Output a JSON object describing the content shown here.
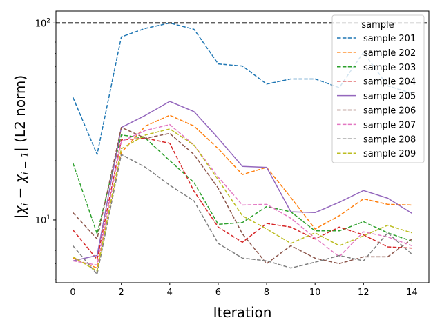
{
  "chart_data": {
    "type": "line",
    "title": "",
    "xlabel": "Iteration",
    "ylabel": "|χᵢ − χᵢ₋₁| (L2 norm)",
    "ylabel_parts": {
      "pre": "|",
      "chi1": "χ",
      "sub1": "i",
      "minus": " − ",
      "chi2": "χ",
      "sub2": "i − 1",
      "post": "| (L2 norm)"
    },
    "yscale": "log",
    "xlim": [
      -0.7,
      14.7
    ],
    "ylim": [
      4.8,
      115
    ],
    "x_ticks": [
      0,
      2,
      4,
      6,
      8,
      10,
      12,
      14
    ],
    "y_ticks": [
      {
        "value": 10,
        "label": "10",
        "exp": "1"
      },
      {
        "value": 100,
        "label": "10",
        "exp": "2"
      }
    ],
    "grid": false,
    "legend": {
      "title": "sample",
      "position": "top-right"
    },
    "reference_line": {
      "y": 100,
      "style": "dashed",
      "color": "#000000"
    },
    "x": [
      0,
      1,
      2,
      3,
      4,
      5,
      6,
      7,
      8,
      9,
      10,
      11,
      12,
      13,
      14
    ],
    "series": [
      {
        "name": "sample 201",
        "color": "#1f77b4",
        "style": "dashed",
        "values": [
          42,
          21.5,
          85,
          94,
          100,
          93,
          62,
          60.5,
          49,
          52,
          52,
          47,
          71,
          48,
          44
        ]
      },
      {
        "name": "sample 202",
        "color": "#ff7f0e",
        "style": "dashed",
        "values": [
          6.4,
          5.7,
          22,
          30,
          34,
          30,
          23,
          17,
          18.5,
          13,
          9,
          10.5,
          12.8,
          12,
          11.9
        ]
      },
      {
        "name": "sample 203",
        "color": "#2ca02c",
        "style": "dashed",
        "values": [
          19.5,
          8.5,
          27,
          26,
          20,
          15.5,
          9.5,
          9.7,
          11.7,
          11,
          8.8,
          8.8,
          9.8,
          8.6,
          7.8
        ]
      },
      {
        "name": "sample 204",
        "color": "#d62728",
        "style": "dashed",
        "values": [
          8.9,
          6.3,
          25.5,
          26,
          24.5,
          14,
          9.2,
          7.7,
          9.6,
          9.2,
          8,
          9.2,
          8.4,
          7.3,
          7.2
        ]
      },
      {
        "name": "sample 205",
        "color": "#9467bd",
        "style": "solid",
        "values": [
          6.2,
          6.6,
          29.5,
          34,
          40,
          35.5,
          26,
          18.7,
          18.5,
          11,
          10.9,
          12.3,
          14.1,
          12.9,
          10.8
        ]
      },
      {
        "name": "sample 206",
        "color": "#8c564b",
        "style": "dashed",
        "values": [
          10.9,
          8,
          29.5,
          26,
          27.5,
          21.5,
          14.5,
          8.5,
          6,
          7.4,
          6.4,
          6,
          6.5,
          6.5,
          8
        ]
      },
      {
        "name": "sample 207",
        "color": "#e377c2",
        "style": "dashed",
        "values": [
          6.2,
          5.9,
          25,
          28.5,
          30.5,
          24,
          16.5,
          11.9,
          12,
          10.2,
          8.1,
          6.5,
          8.7,
          8.2,
          7.4
        ]
      },
      {
        "name": "sample 208",
        "color": "#7f7f7f",
        "style": "dashed",
        "values": [
          7.4,
          5.3,
          21.5,
          18.5,
          15,
          12.5,
          7.6,
          6.4,
          6.2,
          5.7,
          6.1,
          6.6,
          6.2,
          8.6,
          6.7
        ]
      },
      {
        "name": "sample 209",
        "color": "#bcbd22",
        "style": "dashed",
        "values": [
          6.5,
          5.5,
          23,
          27,
          29,
          24,
          16,
          10.5,
          9,
          7.6,
          8.6,
          7.4,
          8.3,
          9.4,
          8.6
        ]
      }
    ]
  }
}
